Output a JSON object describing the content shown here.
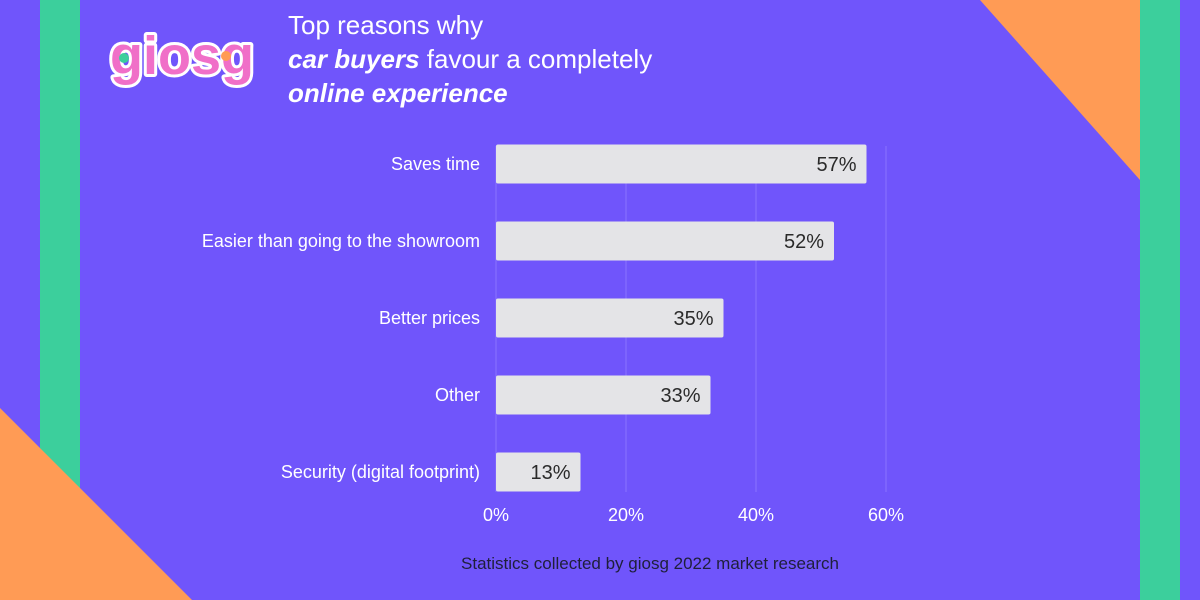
{
  "brand": {
    "logo_text": "giosg"
  },
  "header": {
    "title_line1": "Top reasons why",
    "title_line2_em": "car buyers",
    "title_line2_rest": " favour a completely",
    "title_line3_em": "online experience"
  },
  "footer": {
    "source": "Statistics collected by giosg 2022 market research"
  },
  "colors": {
    "background": "#7055fb",
    "stripe": "#3ccf9c",
    "corner": "#ff9b55",
    "bar": "#e4e4e7",
    "bar_label": "#2a2a2a",
    "axis_label": "#ffffff",
    "grid": "#8a74ff"
  },
  "chart_data": {
    "type": "bar",
    "orientation": "horizontal",
    "title": "Top reasons why car buyers favour a completely online experience",
    "categories": [
      "Saves time",
      "Easier than going to the showroom",
      "Better prices",
      "Other",
      "Security (digital footprint)"
    ],
    "values": [
      57,
      52,
      35,
      33,
      13
    ],
    "value_labels": [
      "57%",
      "52%",
      "35%",
      "33%",
      "13%"
    ],
    "xlim": [
      0,
      60
    ],
    "xticks": [
      0,
      20,
      40,
      60
    ],
    "xtick_labels": [
      "0%",
      "20%",
      "40%",
      "60%"
    ],
    "grid": true
  }
}
